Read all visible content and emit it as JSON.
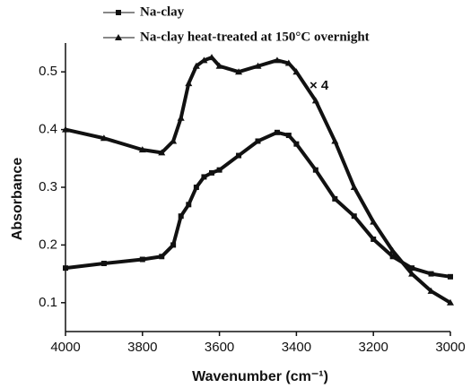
{
  "chart_data": {
    "type": "line",
    "x_label": "Wavenumber (cm⁻¹)",
    "y_label": "Absorbance",
    "annotation": "× 4",
    "x": [
      4000,
      3900,
      3800,
      3750,
      3720,
      3700,
      3680,
      3660,
      3640,
      3620,
      3600,
      3550,
      3500,
      3450,
      3420,
      3400,
      3350,
      3300,
      3250,
      3200,
      3150,
      3100,
      3050,
      3000
    ],
    "series": [
      {
        "name": "Na-clay",
        "color": "#111111",
        "marker": "square",
        "values": [
          0.16,
          0.168,
          0.175,
          0.18,
          0.2,
          0.25,
          0.27,
          0.3,
          0.318,
          0.325,
          0.33,
          0.355,
          0.38,
          0.395,
          0.39,
          0.375,
          0.33,
          0.28,
          0.25,
          0.21,
          0.18,
          0.16,
          0.15,
          0.145
        ]
      },
      {
        "name": "Na-clay heat-treated at 150°C overnight",
        "color": "#111111",
        "marker": "triangle",
        "values": [
          0.4,
          0.385,
          0.365,
          0.36,
          0.38,
          0.42,
          0.48,
          0.51,
          0.52,
          0.525,
          0.51,
          0.5,
          0.51,
          0.52,
          0.515,
          0.5,
          0.45,
          0.38,
          0.3,
          0.24,
          0.19,
          0.15,
          0.12,
          0.1
        ]
      }
    ],
    "xlim": [
      4000,
      3000
    ],
    "xticks": [
      4000,
      3800,
      3600,
      3400,
      3200,
      3000
    ],
    "ylim": [
      0.05,
      0.55
    ],
    "yticks": [
      0.1,
      0.2,
      0.3,
      0.4,
      0.5
    ]
  }
}
